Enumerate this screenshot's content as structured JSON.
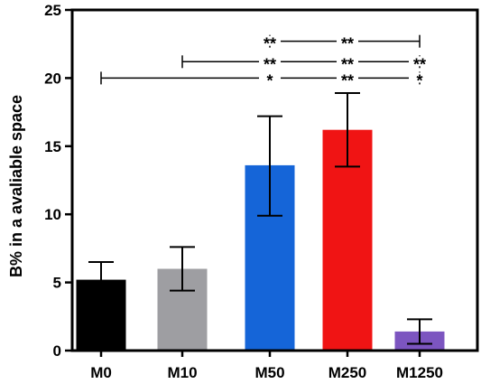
{
  "chart_data": {
    "type": "bar",
    "title": "",
    "xlabel": "",
    "ylabel": "B% in a avaliable space",
    "ylim": [
      0,
      25
    ],
    "yticks": [
      0,
      5,
      10,
      15,
      20,
      25
    ],
    "grid": false,
    "categories": [
      "M0",
      "M10",
      "M50",
      "M250",
      "M1250"
    ],
    "values": [
      5.2,
      6.0,
      13.6,
      16.2,
      1.4
    ],
    "error_low": [
      1.3,
      1.6,
      3.7,
      2.7,
      0.9
    ],
    "error_high": [
      1.3,
      1.6,
      3.6,
      2.7,
      0.9
    ],
    "colors": [
      "#000000",
      "#9e9ea2",
      "#1565d8",
      "#f01414",
      "#7c55c0"
    ],
    "significance": [
      {
        "y": 22.7,
        "from": "M50",
        "to": "M1250",
        "labels": [
          "**",
          "**"
        ],
        "at": [
          "M50",
          "M250"
        ]
      },
      {
        "y": 21.2,
        "from": "M10",
        "to": "M1250",
        "labels": [
          "**",
          "**",
          "**"
        ],
        "at": [
          "M50",
          "M250",
          "M1250"
        ]
      },
      {
        "y": 20.0,
        "from": "M0",
        "to": "M1250",
        "labels": [
          "*",
          "**",
          "*"
        ],
        "at": [
          "M50",
          "M250",
          "M1250"
        ]
      }
    ]
  }
}
